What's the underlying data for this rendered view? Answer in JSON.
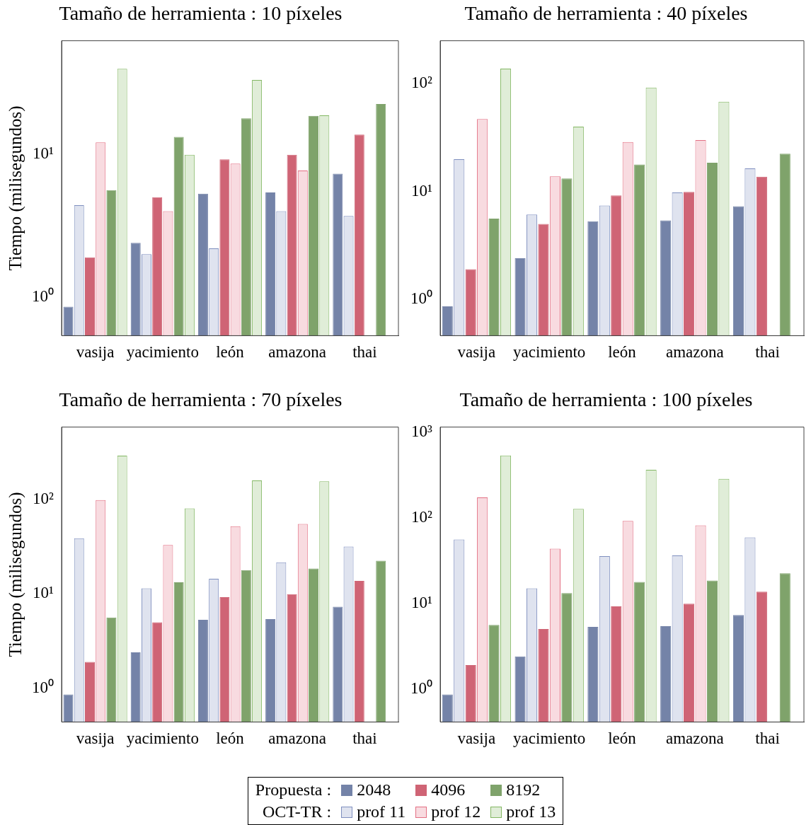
{
  "chart_data": [
    {
      "type": "bar",
      "title": "Tamaño de herramienta : 10 píxeles",
      "ylabel": "Tiempo (milisegundos)",
      "categories": [
        "vasija",
        "yacimiento",
        "león",
        "amazona",
        "thai"
      ],
      "log": true,
      "grid": false,
      "legend": "bottom",
      "annotations": [
        "Propuesta :",
        "OCT-TR :"
      ],
      "ylim": [
        0.54,
        62
      ],
      "yticks": [
        {
          "value": 1,
          "label": "10⁰"
        },
        {
          "value": 10,
          "label": "10¹"
        }
      ],
      "series": [
        {
          "name": "2048",
          "color": "#7483a8",
          "values": [
            0.86,
            2.4,
            5.3,
            5.4,
            7.3
          ]
        },
        {
          "name": "prof 11",
          "color": "#dfe3ef",
          "values": [
            4.4,
            2.0,
            2.2,
            4.0,
            3.7
          ]
        },
        {
          "name": "4096",
          "color": "#cf6475",
          "values": [
            1.9,
            5.0,
            9.2,
            9.9,
            13.7
          ]
        },
        {
          "name": "prof 12",
          "color": "#f8dbe0",
          "values": [
            12.1,
            4.0,
            8.6,
            7.7,
            null
          ]
        },
        {
          "name": "8192",
          "color": "#7fa36b",
          "values": [
            5.6,
            13.2,
            17.8,
            18.5,
            22.4
          ]
        },
        {
          "name": "prof 13",
          "color": "#e0edd8",
          "values": [
            39.5,
            9.9,
            33,
            18.7,
            null
          ]
        }
      ]
    },
    {
      "type": "bar",
      "title": "Tamaño de herramienta : 40 píxeles",
      "categories": [
        "vasija",
        "yacimiento",
        "león",
        "amazona",
        "thai"
      ],
      "log": true,
      "grid": false,
      "ylim": [
        0.46,
        250
      ],
      "yticks": [
        {
          "value": 1,
          "label": "10⁰"
        },
        {
          "value": 10,
          "label": "10¹"
        },
        {
          "value": 100,
          "label": "10²"
        }
      ],
      "series": [
        {
          "color": "#7483a8",
          "values": [
            0.86,
            2.4,
            5.3,
            5.4,
            7.3
          ]
        },
        {
          "color": "#dfe3ef",
          "values": [
            19.9,
            6.1,
            7.4,
            9.8,
            16.4
          ]
        },
        {
          "color": "#cf6475",
          "values": [
            1.9,
            5.0,
            9.2,
            9.9,
            13.7
          ]
        },
        {
          "color": "#f8dbe0",
          "values": [
            47,
            13.8,
            28.7,
            30,
            null
          ]
        },
        {
          "color": "#7fa36b",
          "values": [
            5.6,
            13.2,
            17.8,
            18.5,
            22.4
          ]
        },
        {
          "color": "#e0edd8",
          "values": [
            138,
            40,
            92,
            68,
            null
          ]
        }
      ]
    },
    {
      "type": "bar",
      "title": "Tamaño de herramienta : 70 píxeles",
      "ylabel": "Tiempo (milisegundos)",
      "categories": [
        "vasija",
        "yacimiento",
        "león",
        "amazona",
        "thai"
      ],
      "log": true,
      "grid": false,
      "ylim": [
        0.44,
        580
      ],
      "yticks": [
        {
          "value": 1,
          "label": "10⁰"
        },
        {
          "value": 10,
          "label": "10¹"
        },
        {
          "value": 100,
          "label": "10²"
        }
      ],
      "series": [
        {
          "color": "#7483a8",
          "values": [
            0.86,
            2.4,
            5.3,
            5.4,
            7.3
          ]
        },
        {
          "color": "#dfe3ef",
          "values": [
            38.7,
            11.4,
            14.4,
            21.5,
            31.6
          ]
        },
        {
          "color": "#cf6475",
          "values": [
            1.9,
            5.0,
            9.2,
            9.9,
            13.7
          ]
        },
        {
          "color": "#f8dbe0",
          "values": [
            98,
            32.8,
            51.8,
            54.7,
            null
          ]
        },
        {
          "color": "#7fa36b",
          "values": [
            5.6,
            13.2,
            17.8,
            18.5,
            22.4
          ]
        },
        {
          "color": "#e0edd8",
          "values": [
            289,
            80,
            158,
            155,
            null
          ]
        }
      ]
    },
    {
      "type": "bar",
      "title": "Tamaño de herramienta : 100 píxeles",
      "categories": [
        "vasija",
        "yacimiento",
        "león",
        "amazona",
        "thai"
      ],
      "log": true,
      "grid": false,
      "ylim": [
        0.41,
        1150
      ],
      "yticks": [
        {
          "value": 1,
          "label": "10⁰"
        },
        {
          "value": 10,
          "label": "10¹"
        },
        {
          "value": 100,
          "label": "10²"
        },
        {
          "value": 1000,
          "label": "10³"
        }
      ],
      "series": [
        {
          "color": "#7483a8",
          "values": [
            0.86,
            2.4,
            5.3,
            5.4,
            7.3
          ]
        },
        {
          "color": "#dfe3ef",
          "values": [
            55.7,
            15,
            35.7,
            36.4,
            59
          ]
        },
        {
          "color": "#cf6475",
          "values": [
            1.9,
            5.0,
            9.2,
            9.9,
            13.7
          ]
        },
        {
          "color": "#f8dbe0",
          "values": [
            173,
            43.6,
            92,
            81.7,
            null
          ]
        },
        {
          "color": "#7fa36b",
          "values": [
            5.6,
            13.2,
            17.8,
            18.5,
            22.4
          ]
        },
        {
          "color": "#e0edd8",
          "values": [
            535,
            127,
            364,
            286,
            null
          ]
        }
      ]
    }
  ]
}
